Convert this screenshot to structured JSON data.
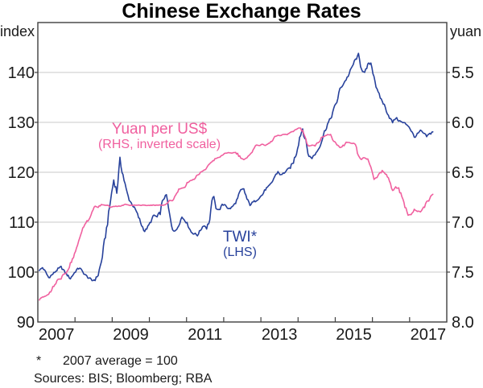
{
  "title": "Chinese Exchange Rates",
  "left_axis_unit": "index",
  "right_axis_unit": "yuan",
  "annotations": {
    "yuan_label": "Yuan per US$",
    "yuan_sublabel": "(RHS, inverted scale)",
    "twi_label": "TWI*",
    "twi_sublabel": "(LHS)"
  },
  "footnote": {
    "marker": "*",
    "text": "2007 average = 100"
  },
  "sources": "Sources: BIS; Bloomberg; RBA",
  "colors": {
    "twi": "#27419b",
    "yuan": "#f0609f",
    "grid": "#c9c9c9",
    "frame": "#3f3f3f",
    "tick_text": "#1a1a1a"
  },
  "chart_data": {
    "type": "line",
    "title": "Chinese Exchange Rates",
    "x_axis": {
      "start": 2007.0,
      "end": 2018.0,
      "year_ticks": [
        2008,
        2009,
        2010,
        2011,
        2012,
        2013,
        2014,
        2015,
        2016,
        2017
      ],
      "label_years": [
        "2007",
        "2009",
        "2011",
        "2013",
        "2015",
        "2017"
      ]
    },
    "left_axis": {
      "label": "index",
      "min": 90,
      "max": 150,
      "ticks": [
        140,
        130,
        120,
        110,
        100,
        90
      ],
      "gridlines": [
        140,
        130,
        120,
        110,
        100
      ]
    },
    "right_axis": {
      "label": "yuan",
      "top": 5.0,
      "bottom": 8.0,
      "inverted_scale": true,
      "ticks": [
        5.5,
        6.0,
        6.5,
        7.0,
        7.5,
        8.0
      ]
    },
    "frequency": "monthly",
    "start": "2007-01",
    "end": "2017-08",
    "series": [
      {
        "name": "TWI*",
        "note": "2007 average = 100",
        "axis": "left",
        "color_key": "twi",
        "values": [
          100.3,
          100.9,
          100.0,
          98.9,
          99.4,
          100.0,
          100.6,
          101.0,
          100.2,
          99.4,
          98.7,
          99.6,
          100.4,
          100.9,
          100.0,
          99.3,
          98.8,
          98.3,
          98.5,
          99.5,
          102.0,
          106.0,
          110.0,
          114.5,
          118.5,
          116.0,
          122.4,
          119.5,
          116.5,
          114.5,
          113.5,
          112.5,
          111.0,
          109.4,
          108.2,
          109.0,
          110.2,
          111.4,
          111.0,
          112.1,
          114.6,
          115.4,
          111.4,
          108.6,
          108.1,
          109.6,
          111.0,
          110.4,
          109.4,
          108.0,
          107.7,
          107.4,
          108.4,
          109.4,
          108.9,
          110.4,
          115.4,
          112.9,
          112.4,
          113.4,
          113.6,
          112.6,
          112.9,
          113.6,
          114.7,
          116.4,
          116.6,
          114.6,
          113.5,
          114.0,
          114.4,
          114.9,
          115.5,
          116.6,
          117.1,
          117.9,
          119.2,
          120.1,
          119.4,
          119.9,
          120.4,
          121.0,
          122.1,
          124.0,
          127.0,
          128.8,
          126.0,
          123.2,
          122.9,
          123.6,
          124.6,
          126.1,
          128.1,
          129.6,
          130.8,
          132.5,
          134.2,
          136.6,
          137.6,
          138.6,
          139.7,
          141.2,
          142.6,
          143.3,
          140.8,
          139.6,
          141.6,
          141.9,
          139.4,
          136.4,
          135.0,
          133.9,
          132.4,
          131.0,
          130.0,
          130.9,
          130.4,
          130.0,
          129.8,
          129.4,
          128.4,
          127.0,
          127.6,
          128.3,
          127.8,
          127.2,
          127.7,
          128.1
        ]
      },
      {
        "name": "Yuan per US$",
        "axis": "right",
        "color_key": "yuan",
        "values": [
          7.78,
          7.75,
          7.74,
          7.72,
          7.67,
          7.62,
          7.57,
          7.57,
          7.52,
          7.5,
          7.42,
          7.36,
          7.25,
          7.16,
          7.07,
          7.0,
          6.97,
          6.9,
          6.84,
          6.85,
          6.82,
          6.83,
          6.83,
          6.85,
          6.84,
          6.84,
          6.84,
          6.83,
          6.82,
          6.83,
          6.83,
          6.83,
          6.83,
          6.83,
          6.83,
          6.83,
          6.83,
          6.83,
          6.83,
          6.83,
          6.83,
          6.82,
          6.78,
          6.79,
          6.74,
          6.67,
          6.66,
          6.65,
          6.6,
          6.58,
          6.57,
          6.53,
          6.5,
          6.48,
          6.46,
          6.41,
          6.39,
          6.36,
          6.35,
          6.33,
          6.31,
          6.3,
          6.31,
          6.3,
          6.32,
          6.36,
          6.37,
          6.35,
          6.33,
          6.27,
          6.23,
          6.23,
          6.22,
          6.23,
          6.21,
          6.19,
          6.14,
          6.13,
          6.13,
          6.12,
          6.12,
          6.1,
          6.09,
          6.07,
          6.05,
          6.09,
          6.18,
          6.24,
          6.23,
          6.23,
          6.2,
          6.15,
          6.14,
          6.12,
          6.13,
          6.19,
          6.22,
          6.25,
          6.24,
          6.2,
          6.2,
          6.21,
          6.21,
          6.34,
          6.37,
          6.35,
          6.37,
          6.45,
          6.57,
          6.55,
          6.51,
          6.48,
          6.53,
          6.59,
          6.68,
          6.65,
          6.67,
          6.74,
          6.84,
          6.93,
          6.92,
          6.87,
          6.89,
          6.89,
          6.86,
          6.8,
          6.77,
          6.72
        ]
      }
    ]
  }
}
